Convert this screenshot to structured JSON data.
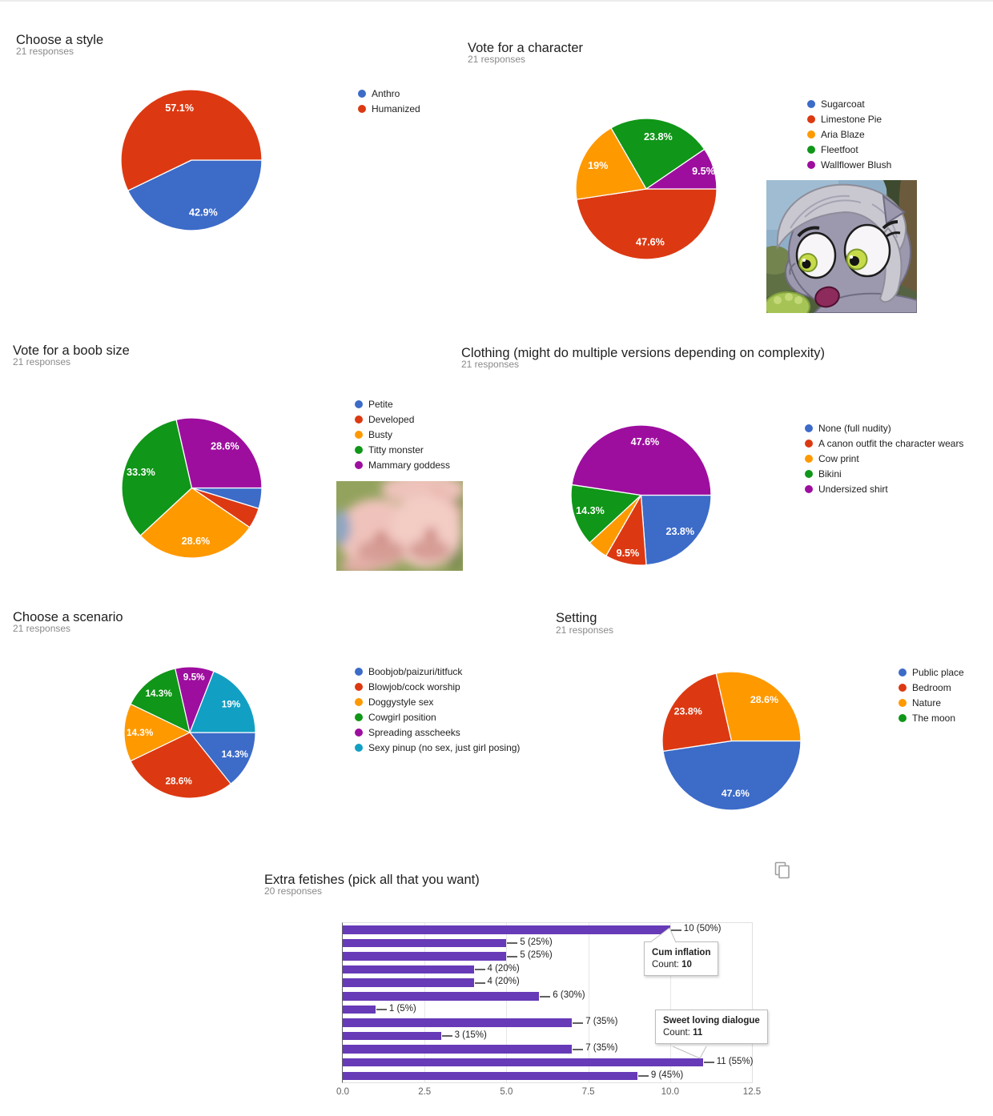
{
  "page": {
    "background": "#ffffff"
  },
  "palette": {
    "blue": "#3C6BC8",
    "red": "#DC3912",
    "orange": "#FF9900",
    "green": "#109618",
    "purple": "#9D0E9E",
    "teal": "#129FC4",
    "bar_purple": "#673AB7",
    "title_text": "#212121",
    "muted_text": "#8a8a8a"
  },
  "chart_data": [
    {
      "id": "style",
      "type": "pie",
      "title": "Choose a style",
      "responses": "21 responses",
      "slices": [
        {
          "label": "Anthro",
          "count": 9,
          "pct": "42.9%",
          "color": "#3C6BC8"
        },
        {
          "label": "Humanized",
          "count": 12,
          "pct": "57.1%",
          "color": "#DC3912"
        }
      ]
    },
    {
      "id": "character",
      "type": "pie",
      "title": "Vote for a character",
      "responses": "21 responses",
      "slices": [
        {
          "label": "Sugarcoat",
          "count": 0,
          "pct": "0%",
          "color": "#3C6BC8"
        },
        {
          "label": "Limestone Pie",
          "count": 10,
          "pct": "47.6%",
          "color": "#DC3912"
        },
        {
          "label": "Aria Blaze",
          "count": 4,
          "pct": "19%",
          "color": "#FF9900"
        },
        {
          "label": "Fleetfoot",
          "count": 5,
          "pct": "23.8%",
          "color": "#109618"
        },
        {
          "label": "Wallflower Blush",
          "count": 2,
          "pct": "9.5%",
          "color": "#9D0E9E"
        }
      ]
    },
    {
      "id": "boob-size",
      "type": "pie",
      "title": "Vote for a boob size",
      "responses": "21 responses",
      "slices": [
        {
          "label": "Petite",
          "count": 1,
          "pct": "4.8%",
          "color": "#3C6BC8"
        },
        {
          "label": "Developed",
          "count": 1,
          "pct": "4.8%",
          "color": "#DC3912"
        },
        {
          "label": "Busty",
          "count": 6,
          "pct": "28.6%",
          "color": "#FF9900"
        },
        {
          "label": "Titty monster",
          "count": 7,
          "pct": "33.3%",
          "color": "#109618"
        },
        {
          "label": "Mammary goddess",
          "count": 6,
          "pct": "28.6%",
          "color": "#9D0E9E"
        }
      ]
    },
    {
      "id": "clothing",
      "type": "pie",
      "title": "Clothing (might do multiple versions depending on complexity)",
      "responses": "21 responses",
      "slices": [
        {
          "label": "None (full nudity)",
          "count": 5,
          "pct": "23.8%",
          "color": "#3C6BC8"
        },
        {
          "label": "A canon outfit the character wears",
          "count": 2,
          "pct": "9.5%",
          "color": "#DC3912"
        },
        {
          "label": "Cow print",
          "count": 1,
          "pct": "4.8%",
          "color": "#FF9900"
        },
        {
          "label": "Bikini",
          "count": 3,
          "pct": "14.3%",
          "color": "#109618"
        },
        {
          "label": "Undersized shirt",
          "count": 10,
          "pct": "47.6%",
          "color": "#9D0E9E"
        }
      ]
    },
    {
      "id": "scenario",
      "type": "pie",
      "title": "Choose a scenario",
      "responses": "21 responses",
      "slices": [
        {
          "label": "Boobjob/paizuri/titfuck",
          "count": 3,
          "pct": "14.3%",
          "color": "#3C6BC8"
        },
        {
          "label": "Blowjob/cock worship",
          "count": 6,
          "pct": "28.6%",
          "color": "#DC3912"
        },
        {
          "label": "Doggystyle sex",
          "count": 3,
          "pct": "14.3%",
          "color": "#FF9900"
        },
        {
          "label": "Cowgirl position",
          "count": 3,
          "pct": "14.3%",
          "color": "#109618"
        },
        {
          "label": "Spreading asscheeks",
          "count": 2,
          "pct": "9.5%",
          "color": "#9D0E9E"
        },
        {
          "label": "Sexy pinup (no sex, just girl posing)",
          "count": 4,
          "pct": "19%",
          "color": "#129FC4"
        }
      ]
    },
    {
      "id": "setting",
      "type": "pie",
      "title": "Setting",
      "responses": "21 responses",
      "slices": [
        {
          "label": "Public place",
          "count": 10,
          "pct": "47.6%",
          "color": "#3C6BC8"
        },
        {
          "label": "Bedroom",
          "count": 5,
          "pct": "23.8%",
          "color": "#DC3912"
        },
        {
          "label": "Nature",
          "count": 6,
          "pct": "28.6%",
          "color": "#FF9900"
        },
        {
          "label": "The moon",
          "count": 0,
          "pct": "0%",
          "color": "#109618"
        }
      ]
    },
    {
      "id": "extra-fetishes",
      "type": "bar",
      "title": "Extra fetishes (pick all that you want)",
      "responses": "20 responses",
      "bar_color": "#673AB7",
      "xmax": 12.5,
      "grid": true,
      "xticks": [
        "0.0",
        "2.5",
        "5.0",
        "7.5",
        "10.0",
        "12.5"
      ],
      "bars": [
        {
          "category": "Cum inflation",
          "value": 10,
          "label": "10 (50%)"
        },
        {
          "category": "",
          "value": 5,
          "label": "5 (25%)"
        },
        {
          "category": "",
          "value": 5,
          "label": "5 (25%)"
        },
        {
          "category": "",
          "value": 4,
          "label": "4 (20%)"
        },
        {
          "category": "",
          "value": 4,
          "label": "4 (20%)"
        },
        {
          "category": "",
          "value": 6,
          "label": "6 (30%)"
        },
        {
          "category": "",
          "value": 1,
          "label": "1 (5%)"
        },
        {
          "category": "",
          "value": 7,
          "label": "7 (35%)"
        },
        {
          "category": "",
          "value": 3,
          "label": "3 (15%)"
        },
        {
          "category": "",
          "value": 7,
          "label": "7 (35%)"
        },
        {
          "category": "Sweet loving dialogue",
          "value": 11,
          "label": "11 (55%)"
        },
        {
          "category": "",
          "value": 9,
          "label": "9 (45%)"
        }
      ],
      "tooltips": [
        {
          "title": "Cum inflation",
          "count_label": "Count:",
          "count_value": "10"
        },
        {
          "title": "Sweet loving dialogue",
          "count_label": "Count:",
          "count_value": "11"
        }
      ]
    }
  ]
}
